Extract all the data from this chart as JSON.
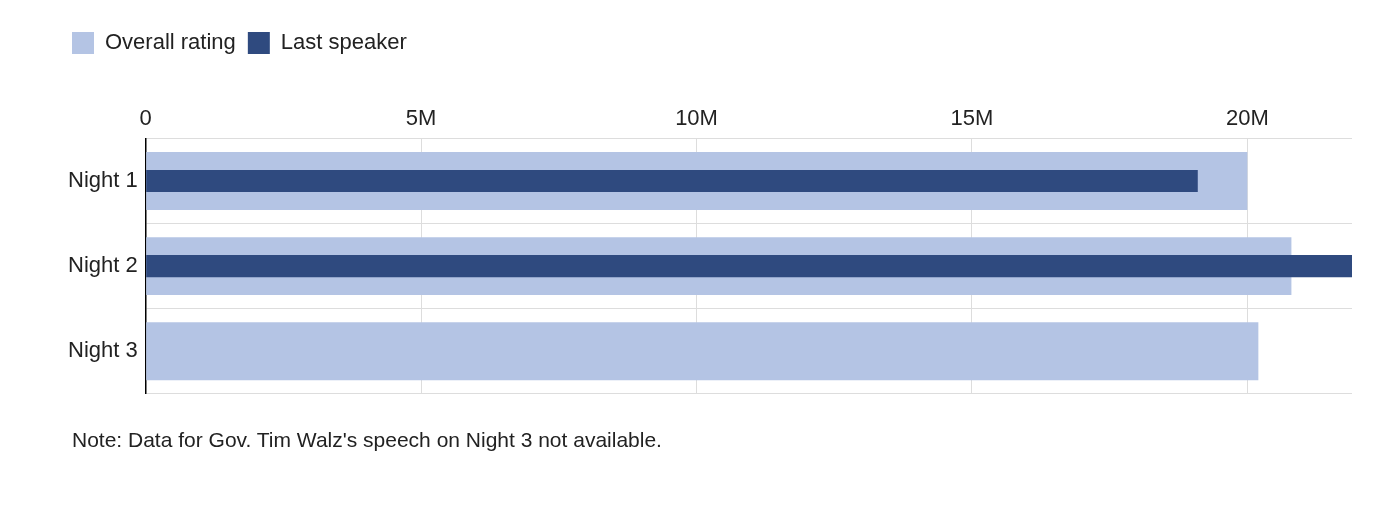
{
  "chart_data": {
    "type": "bar",
    "orientation": "horizontal",
    "categories": [
      "Night 1",
      "Night 2",
      "Night 3"
    ],
    "series": [
      {
        "name": "Overall rating",
        "color": "#b4c4e4",
        "values": [
          20.0,
          20.8,
          20.2
        ]
      },
      {
        "name": "Last speaker",
        "color": "#2f4a7f",
        "values": [
          19.1,
          21.9,
          null
        ]
      }
    ],
    "xlim": [
      0,
      21.9
    ],
    "xticks": [
      0,
      {
        "value": 5,
        "label": "5M"
      },
      {
        "value": 10,
        "label": "10M"
      },
      {
        "value": 15,
        "label": "15M"
      },
      {
        "value": 20,
        "label": "20M"
      }
    ],
    "grid": true,
    "legend": "top left",
    "annotations": [
      "Note: Data for Gov. Tim Walz's speech on Night 3 not available."
    ]
  }
}
